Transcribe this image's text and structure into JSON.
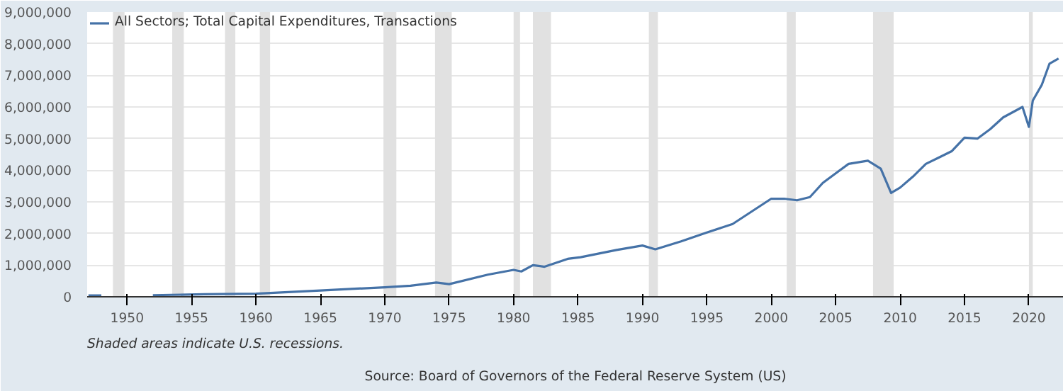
{
  "chart_data": {
    "type": "line",
    "x": [
      1947.0,
      1948.0,
      1948.1,
      1952.0,
      1956.0,
      1960.0,
      1965.0,
      1970.0,
      1972.0,
      1974.0,
      1975.0,
      1978.0,
      1980.0,
      1980.6,
      1981.5,
      1982.4,
      1984.2,
      1985.2,
      1988.0,
      1990.0,
      1991.0,
      1993.0,
      1995.0,
      1997.0,
      2000.0,
      2001.0,
      2002.0,
      2003.0,
      2004.0,
      2005.0,
      2006.0,
      2007.5,
      2008.5,
      2009.3,
      2010.0,
      2011.0,
      2012.0,
      2013.0,
      2014.0,
      2015.0,
      2016.0,
      2017.0,
      2018.0,
      2019.5,
      2020.0,
      2020.3,
      2021.0,
      2021.6,
      2022.3
    ],
    "series": [
      {
        "name": "All Sectors; Total Capital Expenditures, Transactions",
        "color": "#4572a7",
        "values": [
          40000,
          40000,
          null,
          50000,
          80000,
          100000,
          200000,
          300000,
          350000,
          450000,
          400000,
          700000,
          850000,
          800000,
          1000000,
          950000,
          1200000,
          1250000,
          1480000,
          1620000,
          1500000,
          1750000,
          2030000,
          2300000,
          3100000,
          3100000,
          3050000,
          3150000,
          3600000,
          3900000,
          4200000,
          4300000,
          4050000,
          3280000,
          3450000,
          3800000,
          4200000,
          4400000,
          4600000,
          5030000,
          5000000,
          5300000,
          5670000,
          6000000,
          5370000,
          6200000,
          6700000,
          7370000,
          7530000
        ]
      }
    ],
    "xlim": [
      1946.9,
      2022.7
    ],
    "xticks": [
      1950,
      1955,
      1960,
      1965,
      1970,
      1975,
      1980,
      1985,
      1990,
      1995,
      2000,
      2005,
      2010,
      2015,
      2020
    ],
    "ylim": [
      0,
      9000000
    ],
    "yticks": [
      {
        "value": 0,
        "label": "0"
      },
      {
        "value": 1000000,
        "label": "1,000,000"
      },
      {
        "value": 2000000,
        "label": "2,000,000"
      },
      {
        "value": 3000000,
        "label": "3,000,000"
      },
      {
        "value": 4000000,
        "label": "4,000,000"
      },
      {
        "value": 5000000,
        "label": "5,000,000"
      },
      {
        "value": 6000000,
        "label": "6,000,000"
      },
      {
        "value": 7000000,
        "label": "7,000,000"
      },
      {
        "value": 8000000,
        "label": "8,000,000"
      },
      {
        "value": 9000000,
        "label": "9,000,000"
      }
    ],
    "grid": "y",
    "legend": "top left",
    "bands": [
      {
        "axis": "x",
        "from": 1948.9,
        "to": 1949.8,
        "color": "#e1e1e1"
      },
      {
        "axis": "x",
        "from": 1953.5,
        "to": 1954.4,
        "color": "#e1e1e1"
      },
      {
        "axis": "x",
        "from": 1957.6,
        "to": 1958.4,
        "color": "#e1e1e1"
      },
      {
        "axis": "x",
        "from": 1960.3,
        "to": 1961.1,
        "color": "#e1e1e1"
      },
      {
        "axis": "x",
        "from": 1969.9,
        "to": 1970.9,
        "color": "#e1e1e1"
      },
      {
        "axis": "x",
        "from": 1973.9,
        "to": 1975.2,
        "color": "#e1e1e1"
      },
      {
        "axis": "x",
        "from": 1980.0,
        "to": 1980.5,
        "color": "#e1e1e1"
      },
      {
        "axis": "x",
        "from": 1981.5,
        "to": 1982.9,
        "color": "#e1e1e1"
      },
      {
        "axis": "x",
        "from": 1990.5,
        "to": 1991.2,
        "color": "#e1e1e1"
      },
      {
        "axis": "x",
        "from": 2001.2,
        "to": 2001.9,
        "color": "#e1e1e1"
      },
      {
        "axis": "x",
        "from": 2007.9,
        "to": 2009.5,
        "color": "#e1e1e1"
      },
      {
        "axis": "x",
        "from": 2020.0,
        "to": 2020.3,
        "color": "#e1e1e1"
      }
    ],
    "annotations": [
      "Shaded areas indicate U.S. recessions.",
      "Source: Board of Governors of the Federal Reserve System (US)"
    ]
  }
}
